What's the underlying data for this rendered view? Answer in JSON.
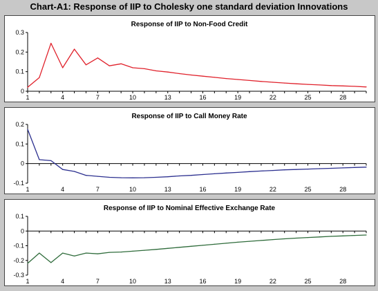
{
  "title": "Chart-A1: Response of IIP to Cholesky one standard deviation Innovations",
  "chart_data": [
    {
      "type": "line",
      "title": "Response of IIP to Non-Food Credit",
      "x": [
        1,
        2,
        3,
        4,
        5,
        6,
        7,
        8,
        9,
        10,
        11,
        12,
        13,
        14,
        15,
        16,
        17,
        18,
        19,
        20,
        21,
        22,
        23,
        24,
        25,
        26,
        27,
        28,
        29,
        30
      ],
      "x_ticks": [
        1,
        4,
        7,
        10,
        13,
        16,
        19,
        22,
        25,
        28
      ],
      "y_ticks": [
        0,
        0.1,
        0.2,
        0.3
      ],
      "y_tick_labels": [
        "0",
        "0.1",
        "0.2",
        "0.3"
      ],
      "ylim": [
        0,
        0.3
      ],
      "series": [
        {
          "color": "#e0202a",
          "values": [
            0.02,
            0.07,
            0.245,
            0.12,
            0.215,
            0.135,
            0.17,
            0.13,
            0.14,
            0.12,
            0.115,
            0.104,
            0.098,
            0.09,
            0.083,
            0.077,
            0.071,
            0.065,
            0.06,
            0.055,
            0.05,
            0.046,
            0.042,
            0.038,
            0.035,
            0.032,
            0.029,
            0.027,
            0.025,
            0.022
          ]
        }
      ],
      "grid": false
    },
    {
      "type": "line",
      "title": "Response of IIP to Call Money Rate",
      "x": [
        1,
        2,
        3,
        4,
        5,
        6,
        7,
        8,
        9,
        10,
        11,
        12,
        13,
        14,
        15,
        16,
        17,
        18,
        19,
        20,
        21,
        22,
        23,
        24,
        25,
        26,
        27,
        28,
        29,
        30
      ],
      "x_ticks": [
        1,
        4,
        7,
        10,
        13,
        16,
        19,
        22,
        25,
        28
      ],
      "y_ticks": [
        -0.1,
        0,
        0.1,
        0.2
      ],
      "y_tick_labels": [
        "-0.1",
        "0",
        "0.1",
        "0.2"
      ],
      "ylim": [
        -0.1,
        0.2
      ],
      "series": [
        {
          "color": "#2b2f8f",
          "values": [
            0.175,
            0.02,
            0.015,
            -0.03,
            -0.04,
            -0.06,
            -0.065,
            -0.07,
            -0.072,
            -0.073,
            -0.072,
            -0.07,
            -0.067,
            -0.063,
            -0.06,
            -0.056,
            -0.052,
            -0.048,
            -0.045,
            -0.041,
            -0.038,
            -0.035,
            -0.032,
            -0.03,
            -0.028,
            -0.026,
            -0.024,
            -0.022,
            -0.02,
            -0.018
          ]
        }
      ],
      "grid": false
    },
    {
      "type": "line",
      "title": "Response of IIP to Nominal Effective Exchange Rate",
      "x": [
        1,
        2,
        3,
        4,
        5,
        6,
        7,
        8,
        9,
        10,
        11,
        12,
        13,
        14,
        15,
        16,
        17,
        18,
        19,
        20,
        21,
        22,
        23,
        24,
        25,
        26,
        27,
        28,
        29,
        30
      ],
      "x_ticks": [
        1,
        4,
        7,
        10,
        13,
        16,
        19,
        22,
        25,
        28
      ],
      "y_ticks": [
        -0.3,
        -0.2,
        -0.1,
        0,
        0.1
      ],
      "y_tick_labels": [
        "-0.3",
        "-0.2",
        "-0.1",
        "0",
        "0.1"
      ],
      "ylim": [
        -0.3,
        0.1
      ],
      "series": [
        {
          "color": "#2e6b3a",
          "values": [
            -0.22,
            -0.15,
            -0.215,
            -0.15,
            -0.17,
            -0.15,
            -0.155,
            -0.145,
            -0.143,
            -0.137,
            -0.131,
            -0.125,
            -0.118,
            -0.111,
            -0.104,
            -0.097,
            -0.09,
            -0.083,
            -0.076,
            -0.07,
            -0.064,
            -0.058,
            -0.053,
            -0.048,
            -0.044,
            -0.04,
            -0.036,
            -0.033,
            -0.03,
            -0.027
          ]
        }
      ],
      "grid": false
    }
  ]
}
